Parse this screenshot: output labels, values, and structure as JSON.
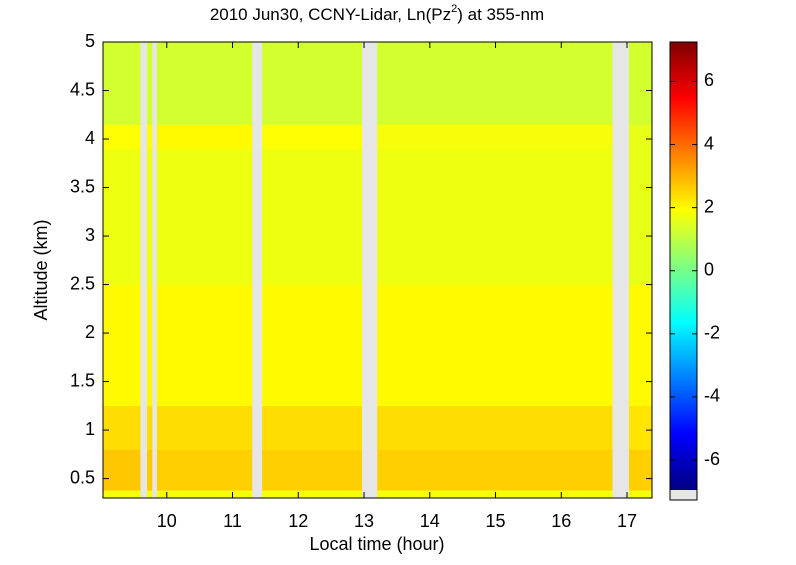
{
  "chart_data": {
    "type": "heatmap",
    "title_parts": [
      "2010 Jun30, CCNY-Lidar, Ln(Pz",
      "2",
      ") at 355-nm"
    ],
    "xlabel": "Local time (hour)",
    "ylabel": "Altitude (km)",
    "x": [
      9.03,
      9.6,
      9.7,
      9.78,
      9.85,
      11.3,
      11.45,
      12.97,
      13.2,
      16.78,
      17.03,
      17.38
    ],
    "y": [
      0.3,
      0.38,
      0.8,
      1.25,
      2.5,
      3.9,
      4.15,
      5
    ],
    "z": [
      [
        1.8,
        null,
        1.8,
        null,
        1.8,
        null,
        1.8,
        null,
        1.8,
        null,
        1.8
      ],
      [
        2.7,
        null,
        2.7,
        null,
        2.6,
        null,
        2.6,
        null,
        2.6,
        null,
        2.6
      ],
      [
        2.4,
        null,
        2.4,
        null,
        2.4,
        null,
        2.4,
        null,
        2.4,
        null,
        2.3
      ],
      [
        2.0,
        null,
        2.0,
        null,
        2.0,
        null,
        2.0,
        null,
        2.0,
        null,
        2.0
      ],
      [
        1.7,
        null,
        1.7,
        null,
        1.7,
        null,
        1.7,
        null,
        1.7,
        null,
        1.6
      ],
      [
        1.9,
        null,
        1.9,
        null,
        2.0,
        null,
        1.9,
        null,
        1.8,
        null,
        1.6
      ],
      [
        1.3,
        null,
        1.3,
        null,
        1.3,
        null,
        1.3,
        null,
        1.3,
        null,
        1.3
      ]
    ],
    "xlim": [
      9.03,
      17.38
    ],
    "ylim": [
      0.3,
      5
    ],
    "xticks": [
      10,
      11,
      12,
      13,
      14,
      15,
      16,
      17
    ],
    "yticks": [
      0.5,
      1,
      1.5,
      2,
      2.5,
      3,
      3.5,
      4,
      4.5,
      5
    ],
    "colormap": "jet",
    "clim": [
      -6.95,
      7.25
    ],
    "cticks": [
      -6,
      -4,
      -2,
      0,
      2,
      4,
      6
    ]
  }
}
